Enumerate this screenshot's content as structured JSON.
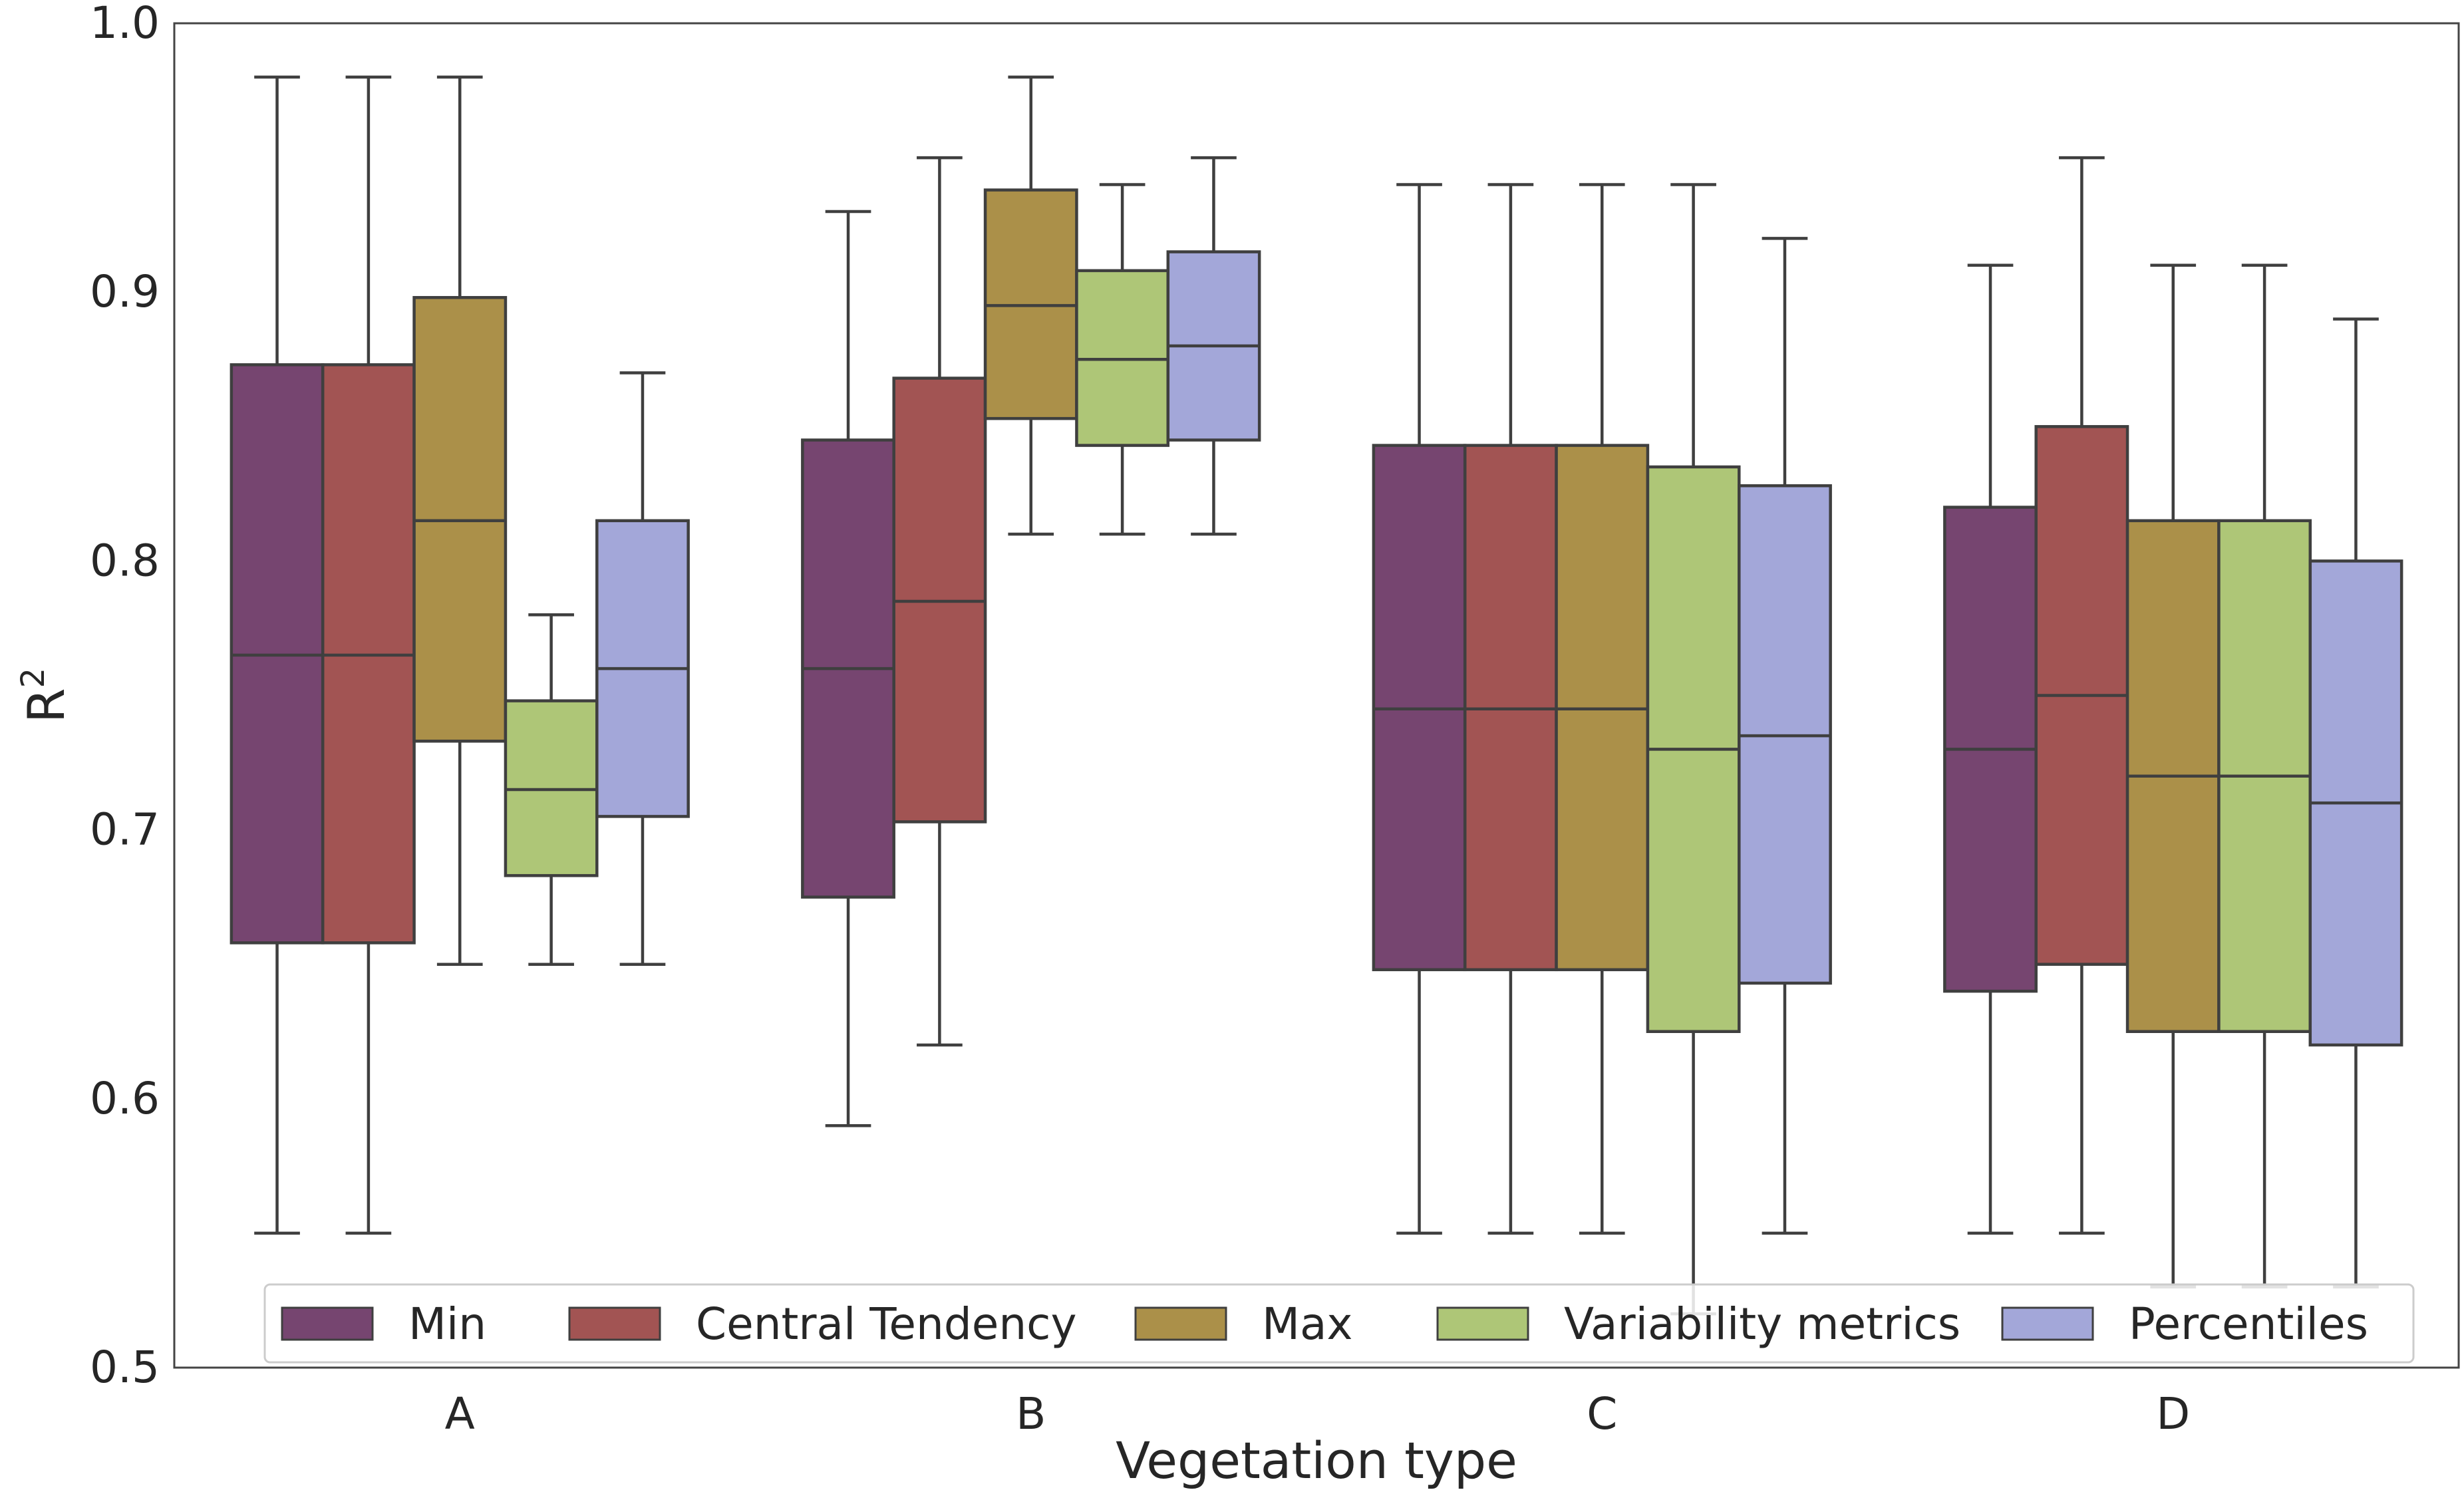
{
  "chart_data": {
    "type": "boxplot",
    "xlabel": "Vegetation type",
    "ylabel": "R",
    "ylabel_superscript": "2",
    "ylim": [
      0.5,
      1.0
    ],
    "yticks": [
      "0.5",
      "0.6",
      "0.7",
      "0.8",
      "0.9",
      "1.0"
    ],
    "grid": false,
    "legend_position": "bottom",
    "categories": [
      "A",
      "B",
      "C",
      "D"
    ],
    "series": [
      {
        "name": "Min",
        "color": "#764570",
        "boxes": [
          {
            "whislo": 0.55,
            "q1": 0.658,
            "med": 0.765,
            "q3": 0.873,
            "whishi": 0.98
          },
          {
            "whislo": 0.59,
            "q1": 0.675,
            "med": 0.76,
            "q3": 0.845,
            "whishi": 0.93
          },
          {
            "whislo": 0.55,
            "q1": 0.648,
            "med": 0.745,
            "q3": 0.843,
            "whishi": 0.94
          },
          {
            "whislo": 0.55,
            "q1": 0.64,
            "med": 0.73,
            "q3": 0.82,
            "whishi": 0.91
          }
        ]
      },
      {
        "name": "Central Tendency",
        "color": "#a25453",
        "boxes": [
          {
            "whislo": 0.55,
            "q1": 0.658,
            "med": 0.765,
            "q3": 0.873,
            "whishi": 0.98
          },
          {
            "whislo": 0.62,
            "q1": 0.703,
            "med": 0.785,
            "q3": 0.868,
            "whishi": 0.95
          },
          {
            "whislo": 0.55,
            "q1": 0.648,
            "med": 0.745,
            "q3": 0.843,
            "whishi": 0.94
          },
          {
            "whislo": 0.55,
            "q1": 0.65,
            "med": 0.75,
            "q3": 0.85,
            "whishi": 0.95
          }
        ]
      },
      {
        "name": "Max",
        "color": "#ab9049",
        "boxes": [
          {
            "whislo": 0.65,
            "q1": 0.733,
            "med": 0.815,
            "q3": 0.898,
            "whishi": 0.98
          },
          {
            "whislo": 0.81,
            "q1": 0.853,
            "med": 0.895,
            "q3": 0.938,
            "whishi": 0.98
          },
          {
            "whislo": 0.55,
            "q1": 0.648,
            "med": 0.745,
            "q3": 0.843,
            "whishi": 0.94
          },
          {
            "whislo": 0.53,
            "q1": 0.625,
            "med": 0.72,
            "q3": 0.815,
            "whishi": 0.91
          }
        ]
      },
      {
        "name": "Variability metrics",
        "color": "#aec677",
        "boxes": [
          {
            "whislo": 0.65,
            "q1": 0.683,
            "med": 0.715,
            "q3": 0.748,
            "whishi": 0.78
          },
          {
            "whislo": 0.81,
            "q1": 0.843,
            "med": 0.875,
            "q3": 0.908,
            "whishi": 0.94
          },
          {
            "whislo": 0.52,
            "q1": 0.625,
            "med": 0.73,
            "q3": 0.835,
            "whishi": 0.94
          },
          {
            "whislo": 0.53,
            "q1": 0.625,
            "med": 0.72,
            "q3": 0.815,
            "whishi": 0.91
          }
        ]
      },
      {
        "name": "Percentiles",
        "color": "#a3a7d9",
        "boxes": [
          {
            "whislo": 0.65,
            "q1": 0.705,
            "med": 0.76,
            "q3": 0.815,
            "whishi": 0.87
          },
          {
            "whislo": 0.81,
            "q1": 0.845,
            "med": 0.88,
            "q3": 0.915,
            "whishi": 0.95
          },
          {
            "whislo": 0.55,
            "q1": 0.643,
            "med": 0.735,
            "q3": 0.828,
            "whishi": 0.92
          },
          {
            "whislo": 0.53,
            "q1": 0.62,
            "med": 0.71,
            "q3": 0.8,
            "whishi": 0.89
          }
        ]
      }
    ]
  }
}
